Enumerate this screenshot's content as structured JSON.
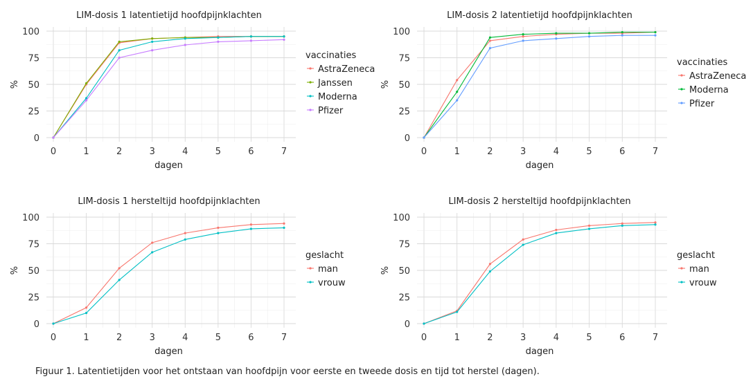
{
  "caption": "Figuur 1. Latentietijden voor het ontstaan van hoofdpijn voor eerste en tweede dosis en tijd tot herstel (dagen).",
  "chart_data": [
    {
      "type": "line",
      "title": "LIM-dosis 1 latentietijd hoofdpijnklachten",
      "xlabel": "dagen",
      "ylabel": "%",
      "x": [
        0,
        1,
        2,
        3,
        4,
        5,
        6,
        7
      ],
      "xlim": [
        0,
        7
      ],
      "ylim": [
        0,
        100
      ],
      "yticks": [
        0,
        25,
        50,
        75,
        100
      ],
      "grid": true,
      "legend_title": "vaccinaties",
      "legend_position": "right",
      "series": [
        {
          "name": "AstraZeneca",
          "color": "#F8766D",
          "values": [
            0,
            50,
            89,
            93,
            94,
            95,
            95,
            95
          ]
        },
        {
          "name": "Janssen",
          "color": "#7CAE00",
          "values": [
            0,
            51,
            90,
            93,
            94,
            94,
            95,
            95
          ]
        },
        {
          "name": "Moderna",
          "color": "#00BFC4",
          "values": [
            0,
            37,
            82,
            90,
            93,
            94,
            95,
            95
          ]
        },
        {
          "name": "Pfizer",
          "color": "#C77CFF",
          "values": [
            0,
            35,
            75,
            82,
            87,
            90,
            91,
            92
          ]
        }
      ]
    },
    {
      "type": "line",
      "title": "LIM-dosis 2 latentietijd hoofdpijnklachten",
      "xlabel": "dagen",
      "ylabel": "%",
      "x": [
        0,
        1,
        2,
        3,
        4,
        5,
        6,
        7
      ],
      "xlim": [
        0,
        7
      ],
      "ylim": [
        0,
        100
      ],
      "yticks": [
        0,
        25,
        50,
        75,
        100
      ],
      "grid": true,
      "legend_title": "vaccinaties",
      "legend_position": "right",
      "series": [
        {
          "name": "AstraZeneca",
          "color": "#F8766D",
          "values": [
            0,
            54,
            91,
            95,
            97,
            98,
            98,
            99
          ]
        },
        {
          "name": "Moderna",
          "color": "#00BA38",
          "values": [
            0,
            43,
            94,
            97,
            98,
            98,
            99,
            99
          ]
        },
        {
          "name": "Pfizer",
          "color": "#619CFF",
          "values": [
            0,
            35,
            84,
            91,
            93,
            95,
            96,
            96
          ]
        }
      ]
    },
    {
      "type": "line",
      "title": "LIM-dosis 1 hersteltijd hoofdpijnklachten",
      "xlabel": "dagen",
      "ylabel": "%",
      "x": [
        0,
        1,
        2,
        3,
        4,
        5,
        6,
        7
      ],
      "xlim": [
        0,
        7
      ],
      "ylim": [
        0,
        100
      ],
      "yticks": [
        0,
        25,
        50,
        75,
        100
      ],
      "grid": true,
      "legend_title": "geslacht",
      "legend_position": "right",
      "series": [
        {
          "name": "man",
          "color": "#F8766D",
          "values": [
            0,
            15,
            52,
            76,
            85,
            90,
            93,
            94
          ]
        },
        {
          "name": "vrouw",
          "color": "#00BFC4",
          "values": [
            0,
            10,
            41,
            67,
            79,
            85,
            89,
            90
          ]
        }
      ]
    },
    {
      "type": "line",
      "title": "LIM-dosis 2 hersteltijd hoofdpijnklachten",
      "xlabel": "dagen",
      "ylabel": "%",
      "x": [
        0,
        1,
        2,
        3,
        4,
        5,
        6,
        7
      ],
      "xlim": [
        0,
        7
      ],
      "ylim": [
        0,
        100
      ],
      "yticks": [
        0,
        25,
        50,
        75,
        100
      ],
      "grid": true,
      "legend_title": "geslacht",
      "legend_position": "right",
      "series": [
        {
          "name": "man",
          "color": "#F8766D",
          "values": [
            0,
            12,
            56,
            79,
            88,
            92,
            94,
            95
          ]
        },
        {
          "name": "vrouw",
          "color": "#00BFC4",
          "values": [
            0,
            11,
            49,
            74,
            85,
            89,
            92,
            93
          ]
        }
      ]
    }
  ]
}
